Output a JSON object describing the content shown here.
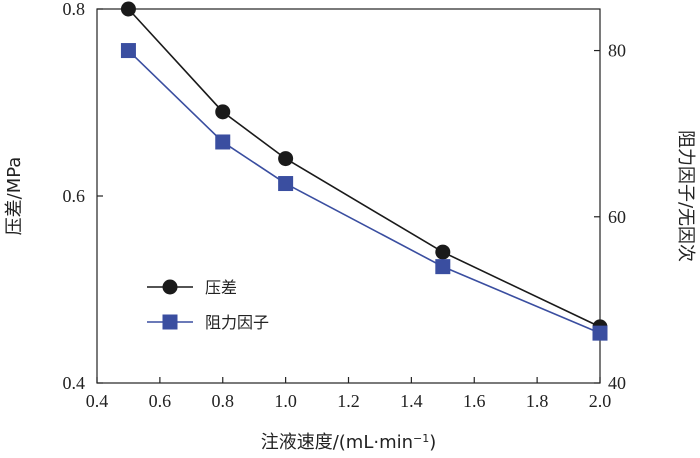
{
  "chart_data": {
    "type": "line",
    "x": [
      0.5,
      0.8,
      1.0,
      1.5,
      2.0
    ],
    "xlabel": "注液速度/(mL·min",
    "xlabel_sup": "−1",
    "xlabel_close": ")",
    "xlim": [
      0.4,
      2.0
    ],
    "xticks": [
      "0.4",
      "0.6",
      "0.8",
      "1.0",
      "1.2",
      "1.4",
      "1.6",
      "1.8",
      "2.0"
    ],
    "y_left": {
      "label": "压差/MPa",
      "lim": [
        0.4,
        0.8
      ],
      "ticks": [
        "0.4",
        "0.6",
        "0.8"
      ]
    },
    "y_right": {
      "label": "阻力因子/无因次",
      "lim": [
        40,
        85
      ],
      "ticks": [
        "40",
        "60",
        "80"
      ]
    },
    "series": [
      {
        "name": "压差",
        "axis": "left",
        "marker": "circle",
        "color": "#1a1a1a",
        "values": [
          0.8,
          0.69,
          0.64,
          0.54,
          0.46
        ]
      },
      {
        "name": "阻力因子",
        "axis": "right",
        "marker": "square",
        "color": "#3a4ea0",
        "values": [
          80,
          69,
          64,
          54,
          46
        ]
      }
    ],
    "legend_position": "bottom-left",
    "grid": false
  }
}
